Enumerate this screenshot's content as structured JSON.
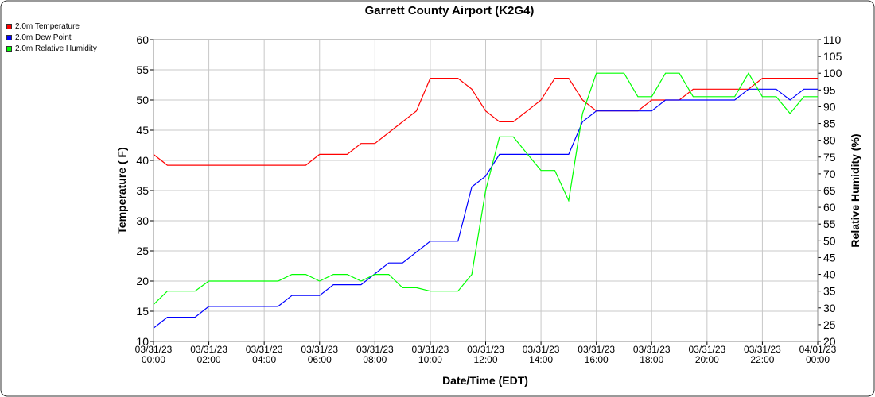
{
  "chart_data": {
    "type": "line",
    "title": "Garrett County Airport (K2G4)",
    "x_label": "Date/Time (EDT)",
    "y_label": "Temperature ( F)",
    "y2_label": "Relative Humidity (%)",
    "grid": true,
    "legend": "top-left",
    "x": [
      "03/31/23 00:00",
      "03/31/23 00:30",
      "03/31/23 01:00",
      "03/31/23 01:30",
      "03/31/23 02:00",
      "03/31/23 02:30",
      "03/31/23 03:00",
      "03/31/23 03:30",
      "03/31/23 04:00",
      "03/31/23 04:30",
      "03/31/23 05:00",
      "03/31/23 05:30",
      "03/31/23 06:00",
      "03/31/23 06:30",
      "03/31/23 07:00",
      "03/31/23 07:30",
      "03/31/23 08:00",
      "03/31/23 08:30",
      "03/31/23 09:00",
      "03/31/23 09:30",
      "03/31/23 10:00",
      "03/31/23 10:30",
      "03/31/23 11:00",
      "03/31/23 11:30",
      "03/31/23 12:00",
      "03/31/23 12:30",
      "03/31/23 13:00",
      "03/31/23 13:30",
      "03/31/23 14:00",
      "03/31/23 14:30",
      "03/31/23 15:00",
      "03/31/23 15:30",
      "03/31/23 16:00",
      "03/31/23 16:30",
      "03/31/23 17:00",
      "03/31/23 17:30",
      "03/31/23 18:00",
      "03/31/23 18:30",
      "03/31/23 19:00",
      "03/31/23 19:30",
      "03/31/23 20:00",
      "03/31/23 20:30",
      "03/31/23 21:00",
      "03/31/23 21:30",
      "03/31/23 22:00",
      "03/31/23 22:30",
      "03/31/23 23:00",
      "03/31/23 23:30",
      "04/01/23 00:00"
    ],
    "series": [
      {
        "name": "2.0m Temperature",
        "color": "#ff0000",
        "values": [
          41,
          39.2,
          39.2,
          39.2,
          39.2,
          39.2,
          39.2,
          39.2,
          39.2,
          39.2,
          39.2,
          39.2,
          41,
          41,
          41,
          42.8,
          42.8,
          44.6,
          46.4,
          48.2,
          53.6,
          53.6,
          53.6,
          51.8,
          48.2,
          46.4,
          46.4,
          48.2,
          50,
          53.6,
          53.6,
          50,
          48.2,
          48.2,
          48.2,
          48.2,
          50,
          50,
          50,
          51.8,
          51.8,
          51.8,
          51.8,
          51.8,
          53.6,
          53.6,
          53.6,
          53.6,
          53.6
        ]
      },
      {
        "name": "2.0m Dew Point",
        "color": "#0000ff",
        "values": [
          12.2,
          14,
          14,
          14,
          15.8,
          15.8,
          15.8,
          15.8,
          15.8,
          15.8,
          17.6,
          17.6,
          17.6,
          19.4,
          19.4,
          19.4,
          21.2,
          23,
          23,
          24.8,
          26.6,
          26.6,
          26.6,
          35.6,
          37.4,
          41,
          41,
          41,
          41,
          41,
          41,
          46.4,
          48.2,
          48.2,
          48.2,
          48.2,
          48.2,
          50,
          50,
          50,
          50,
          50,
          50,
          51.8,
          51.8,
          51.8,
          50,
          51.8,
          51.8
        ]
      },
      {
        "name": "2.0m Relative Humidity",
        "color": "#00ff00",
        "axis": "y2",
        "values": [
          31,
          35,
          35,
          35,
          38,
          38,
          38,
          38,
          38,
          38,
          40,
          40,
          38,
          40,
          40,
          38,
          40,
          40,
          36,
          36,
          35,
          35,
          35,
          40,
          65,
          81,
          81,
          76,
          71,
          71,
          62,
          88,
          100,
          100,
          100,
          93,
          93,
          100,
          100,
          93,
          93,
          93,
          93,
          100,
          93,
          93,
          88,
          93,
          93
        ]
      }
    ],
    "xticks": [
      "03/31/23 00:00",
      "03/31/23 02:00",
      "03/31/23 04:00",
      "03/31/23 06:00",
      "03/31/23 08:00",
      "03/31/23 10:00",
      "03/31/23 12:00",
      "03/31/23 14:00",
      "03/31/23 16:00",
      "03/31/23 18:00",
      "03/31/23 20:00",
      "03/31/23 22:00",
      "04/01/23 00:00"
    ],
    "ylim": [
      10,
      60
    ],
    "yticks": [
      10,
      15,
      20,
      25,
      30,
      35,
      40,
      45,
      50,
      55,
      60
    ],
    "y2lim": [
      20,
      110
    ],
    "y2ticks": [
      20,
      25,
      30,
      35,
      40,
      45,
      50,
      55,
      60,
      65,
      70,
      75,
      80,
      85,
      90,
      95,
      100,
      105,
      110
    ]
  }
}
